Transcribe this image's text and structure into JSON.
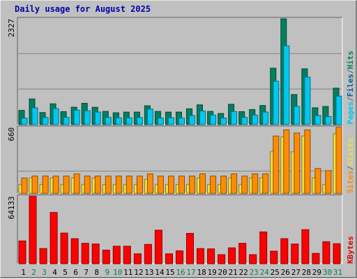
{
  "chart_data": {
    "type": "bar",
    "title": "Daily usage for August 2025",
    "categories": [
      "1",
      "2",
      "3",
      "4",
      "5",
      "6",
      "7",
      "8",
      "9",
      "10",
      "11",
      "12",
      "13",
      "14",
      "15",
      "16",
      "17",
      "18",
      "19",
      "20",
      "21",
      "22",
      "23",
      "24",
      "25",
      "26",
      "27",
      "28",
      "29",
      "30",
      "31"
    ],
    "weekend_days": [
      "2",
      "3",
      "9",
      "10",
      "16",
      "17",
      "23",
      "24",
      "30",
      "31"
    ],
    "panels": [
      {
        "id": "hits",
        "ymax_label": "2327",
        "ylim": [
          0,
          2327
        ],
        "legend": [
          {
            "text": "Pages",
            "color": "#00c8f0"
          },
          {
            "text": "/",
            "color": "#606060"
          },
          {
            "text": "Files",
            "color": "#0060a0"
          },
          {
            "text": "/",
            "color": "#606060"
          },
          {
            "text": "Hits",
            "color": "#008060"
          }
        ],
        "series": [
          {
            "name": "Hits",
            "color": "#008060",
            "values": [
              312,
              564,
              264,
              456,
              284,
              381,
              467,
              380,
              290,
              259,
              274,
              274,
              414,
              290,
              274,
              274,
              347,
              433,
              290,
              244,
              446,
              283,
              330,
              420,
              1240,
              2327,
              660,
              1226,
              369,
              398,
              801
            ]
          },
          {
            "name": "Files",
            "color": "#00c8f0",
            "values": [
              142,
              369,
              157,
              350,
              157,
              318,
              304,
              276,
              157,
              149,
              149,
              155,
              339,
              142,
              150,
              142,
              199,
              299,
              210,
              142,
              286,
              157,
              210,
              275,
              954,
              1731,
              400,
              1043,
              200,
              176,
              624
            ]
          }
        ]
      },
      {
        "id": "visits",
        "ymax_label": "660",
        "ylim": [
          0,
          660
        ],
        "legend": [
          {
            "text": "Sites",
            "color": "#ff8c00"
          },
          {
            "text": "/",
            "color": "#606060"
          },
          {
            "text": "Visits",
            "color": "#f0e040"
          }
        ],
        "series": [
          {
            "name": "Visits",
            "color": "#f0e040",
            "values": [
              89,
              154,
              89,
              154,
              89,
              154,
              89,
              154,
              89,
              89,
              89,
              89,
              139,
              89,
              89,
              89,
              89,
              154,
              89,
              89,
              154,
              89,
              154,
              154,
              417,
              564,
              417,
              573,
              154,
              89,
              597
            ]
          },
          {
            "name": "Sites",
            "color": "#ff8c00",
            "values": [
              154,
              174,
              174,
              174,
              174,
              195,
              174,
              174,
              174,
              174,
              174,
              174,
              195,
              174,
              174,
              174,
              174,
              195,
              174,
              174,
              195,
              174,
              195,
              195,
              573,
              635,
              604,
              635,
              249,
              228,
              660
            ]
          }
        ]
      },
      {
        "id": "kbytes",
        "ymax_label": "64133",
        "ylim": [
          0,
          64133
        ],
        "legend": [
          {
            "text": "KBytes",
            "color": "#e00000"
          }
        ],
        "series": [
          {
            "name": "KBytes",
            "color": "#ff0000",
            "values": [
              21600,
              64133,
              14400,
              48700,
              29100,
              23800,
              19400,
              18700,
              12900,
              16600,
              16600,
              9400,
              18300,
              31900,
              9400,
              12200,
              28800,
              14400,
              14100,
              8600,
              15100,
              19400,
              8600,
              30200,
              11900,
              23800,
              18700,
              32300,
              9800,
              20900,
              19000
            ]
          }
        ]
      }
    ]
  }
}
